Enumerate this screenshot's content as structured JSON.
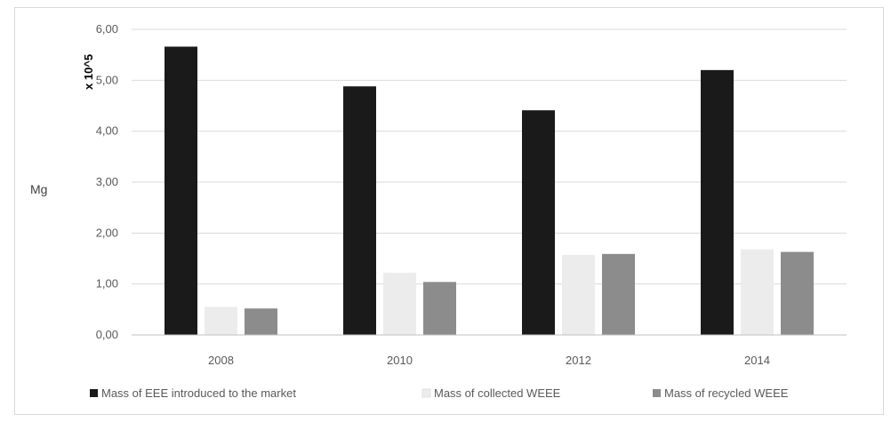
{
  "chart_data": {
    "type": "bar",
    "categories": [
      "2008",
      "2010",
      "2012",
      "2014"
    ],
    "series": [
      {
        "name": "Mass of EEE introduced to the market",
        "values": [
          5.66,
          4.88,
          4.41,
          5.2
        ],
        "color": "#1a1a1a"
      },
      {
        "name": "Mass of collected  WEEE",
        "values": [
          0.55,
          1.22,
          1.57,
          1.68
        ],
        "color": "#ececec"
      },
      {
        "name": "Mass of recycled WEEE",
        "values": [
          0.52,
          1.04,
          1.59,
          1.63
        ],
        "color": "#8c8c8c"
      }
    ],
    "yticks": [
      "0,00",
      "1,00",
      "2,00",
      "3,00",
      "4,00",
      "5,00",
      "6,00"
    ],
    "ylim": [
      0,
      6
    ],
    "ylabel": "Mg",
    "y_multiplier_label": "x 10^5",
    "grid": true,
    "legend_position": "bottom"
  }
}
